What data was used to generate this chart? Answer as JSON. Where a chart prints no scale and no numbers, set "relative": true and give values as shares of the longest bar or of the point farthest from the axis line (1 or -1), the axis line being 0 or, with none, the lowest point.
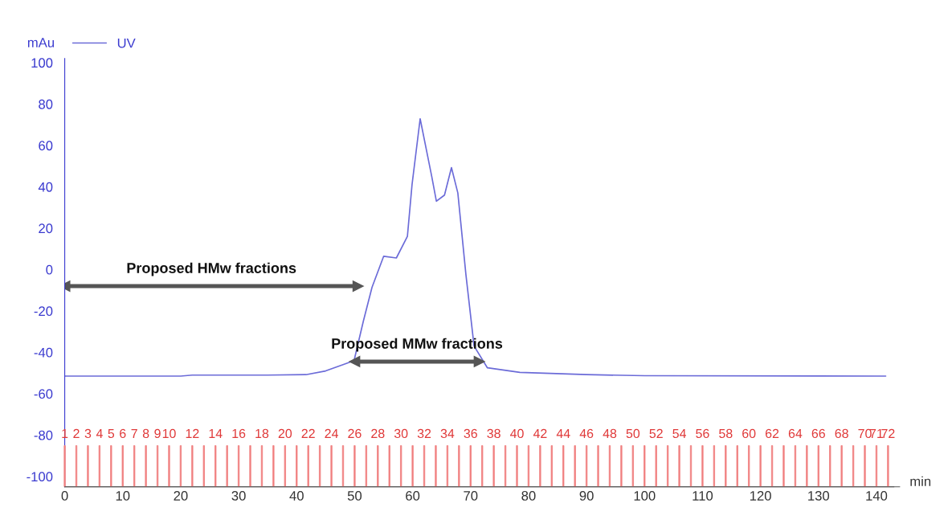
{
  "chart_data": [
    {
      "type": "line",
      "xlabel": "min",
      "ylabel": "mAu",
      "x": [
        0,
        20,
        22,
        35,
        41.6,
        45,
        48,
        49.9,
        51.5,
        53.0,
        55.0,
        57.2,
        59.1,
        59.9,
        61.3,
        63.3,
        64.1,
        65.5,
        66.7,
        67.8,
        69.2,
        70.6,
        72.9,
        78.5,
        90,
        100,
        141.6
      ],
      "series": [
        {
          "name": "UV",
          "color": "#6b6bd8",
          "values": [
            -51.5,
            -51.5,
            -51,
            -51,
            -50.8,
            -49,
            -46,
            -44,
            -25,
            -8.6,
            6.4,
            5.6,
            16,
            41,
            72.9,
            45,
            33,
            36,
            49.3,
            37,
            -2.6,
            -37,
            -47.5,
            -49.7,
            -50.8,
            -51.3,
            -51.5
          ]
        },
        {
          "type": "line",
          "color": "#555555",
          "marker": "triangle",
          "x": [
            0,
            50.6
          ],
          "values": [
            -8,
            -8
          ]
        },
        {
          "type": "line",
          "color": "#555555",
          "marker": "triangle",
          "x": [
            50,
            71.5
          ],
          "values": [
            -44.5,
            -44.5
          ]
        }
      ],
      "xlim": [
        0,
        144
      ],
      "xticks": [
        0,
        10,
        20,
        30,
        40,
        50,
        60,
        70,
        80,
        90,
        100,
        110,
        120,
        130,
        140
      ],
      "ylim": [
        -105,
        102
      ],
      "yticks": [
        -100,
        -80,
        -60,
        -40,
        -20,
        0,
        20,
        40,
        60,
        80,
        100
      ],
      "annotations": [
        {
          "text": "Proposed HMw fractions",
          "x": 25.3,
          "y": -8
        },
        {
          "text": "Proposed MMw fractions",
          "x": 60.75,
          "y": -44.5
        }
      ],
      "legend": "top left",
      "grid": false
    },
    {
      "type": "bar",
      "relative": true,
      "color": "#f08080",
      "categories": [
        "1",
        "2",
        "3",
        "4",
        "5",
        "6",
        "7",
        "8",
        "9",
        "10",
        null,
        "12",
        null,
        "14",
        null,
        "16",
        null,
        "18",
        null,
        "20",
        null,
        "22",
        null,
        "24",
        null,
        "26",
        null,
        "28",
        null,
        "30",
        null,
        "32",
        null,
        "34",
        null,
        "36",
        null,
        "38",
        null,
        "40",
        null,
        "42",
        null,
        "44",
        null,
        "46",
        null,
        "48",
        null,
        "50",
        null,
        "52",
        null,
        "54",
        null,
        "56",
        null,
        "58",
        null,
        "60",
        null,
        "62",
        null,
        "64",
        null,
        "66",
        null,
        "68",
        null,
        "70",
        "71",
        "72"
      ],
      "values": [
        1,
        1,
        1,
        1,
        1,
        1,
        1,
        1,
        1,
        1,
        1,
        1,
        1,
        1,
        1,
        1,
        1,
        1,
        1,
        1,
        1,
        1,
        1,
        1,
        1,
        1,
        1,
        1,
        1,
        1,
        1,
        1,
        1,
        1,
        1,
        1,
        1,
        1,
        1,
        1,
        1,
        1,
        1,
        1,
        1,
        1,
        1,
        1,
        1,
        1,
        1,
        1,
        1,
        1,
        1,
        1,
        1,
        1,
        1,
        1,
        1,
        1,
        1,
        1,
        1,
        1,
        1,
        1,
        1,
        1,
        1,
        1
      ]
    }
  ]
}
